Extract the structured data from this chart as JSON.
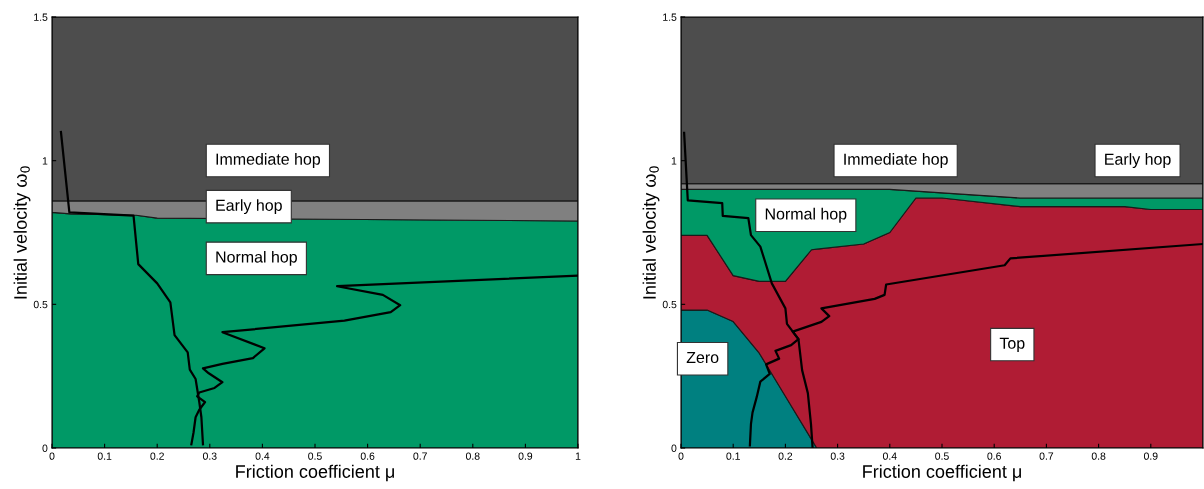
{
  "chart_data": [
    {
      "type": "area",
      "stacked": true,
      "xlabel": "Friction coefficient μ",
      "ylabel": "Initial velocity ω$_{0}$",
      "xlim": [
        0,
        1
      ],
      "ylim": [
        0,
        1.5
      ],
      "xticks": [
        0,
        0.1,
        0.2,
        0.3,
        0.4,
        0.5,
        0.6,
        0.7,
        0.8,
        0.9,
        1
      ],
      "yticks": [
        0,
        0.5,
        1,
        1.5
      ],
      "x": [
        0,
        0.035,
        0.16,
        0.2,
        1
      ],
      "series": [
        {
          "name": "Normal hop",
          "color": "#009966",
          "values": [
            0.82,
            0.815,
            0.81,
            0.8,
            0.79
          ]
        },
        {
          "name": "Early hop",
          "color": "#808080",
          "values": [
            0.04,
            0.045,
            0.05,
            0.06,
            0.07
          ]
        },
        {
          "name": "Immediate hop",
          "color": "#4d4d4d",
          "values": [
            0.64,
            0.64,
            0.64,
            0.64,
            0.64
          ]
        },
        {
          "type": "line",
          "color": "#000000",
          "x": [
            0.017,
            0.033,
            0.155,
            0.164,
            0.2,
            0.225,
            0.233,
            0.258,
            0.262,
            0.273,
            0.28,
            0.284,
            0.287
          ],
          "values": [
            1.1,
            0.82,
            0.809,
            0.64,
            0.573,
            0.507,
            0.393,
            0.333,
            0.273,
            0.24,
            0.16,
            0.107,
            0.013
          ]
        },
        {
          "type": "line",
          "color": "#000000",
          "x": [
            1,
            0.542,
            0.629,
            0.662,
            0.644,
            0.556,
            0.324,
            0.404,
            0.382,
            0.324,
            0.287,
            0.298,
            0.324,
            0.309,
            0.28,
            0.276,
            0.291,
            0.28,
            0.273,
            0.269,
            0.265
          ],
          "values": [
            0.6,
            0.563,
            0.533,
            0.497,
            0.473,
            0.443,
            0.403,
            0.347,
            0.313,
            0.293,
            0.277,
            0.26,
            0.229,
            0.209,
            0.193,
            0.18,
            0.16,
            0.133,
            0.107,
            0.053,
            0.013
          ]
        }
      ]
    },
    {
      "type": "area",
      "stacked": true,
      "xlabel": "Friction coefficient μ",
      "ylabel": "Initial velocity ω$_{0}$",
      "xlim": [
        0,
        1
      ],
      "ylim": [
        0,
        1.5
      ],
      "xticks": [
        0,
        0.1,
        0.2,
        0.3,
        0.4,
        0.5,
        0.6,
        0.7,
        0.8,
        0.9
      ],
      "yticks": [
        0,
        0.5,
        1,
        1.5
      ],
      "x": [
        0,
        0.05,
        0.1,
        0.15,
        0.2,
        0.25,
        0.26,
        0.35,
        0.4,
        0.45,
        0.5,
        0.65,
        0.85,
        0.9,
        1
      ],
      "series": [
        {
          "name": "Zero",
          "color": "#008080",
          "values": [
            0.48,
            0.48,
            0.44,
            0.33,
            0.18,
            0.03,
            0,
            0,
            0,
            0,
            0,
            0,
            0,
            0,
            0
          ]
        },
        {
          "name": "Top",
          "color": "#b01c34",
          "values": [
            0.26,
            0.26,
            0.16,
            0.25,
            0.4,
            0.66,
            0.692,
            0.71,
            0.75,
            0.87,
            0.87,
            0.84,
            0.84,
            0.83,
            0.83
          ]
        },
        {
          "name": "Normal hop",
          "color": "#009966",
          "values": [
            0.16,
            0.16,
            0.3,
            0.32,
            0.32,
            0.21,
            0.208,
            0.19,
            0.15,
            0.024,
            0.018,
            0.03,
            0.03,
            0.04,
            0.04
          ]
        },
        {
          "name": "Early hop",
          "color": "#808080",
          "values": [
            0.02,
            0.02,
            0.02,
            0.02,
            0.02,
            0.02,
            0.02,
            0.02,
            0.02,
            0.026,
            0.032,
            0.05,
            0.05,
            0.05,
            0.05
          ]
        },
        {
          "name": "Immediate hop",
          "color": "#4d4d4d",
          "values": [
            0.58,
            0.58,
            0.58,
            0.58,
            0.58,
            0.58,
            0.58,
            0.58,
            0.58,
            0.58,
            0.58,
            0.58,
            0.58,
            0.58,
            0.58
          ]
        },
        {
          "type": "line",
          "color": "#000000",
          "x": [
            0.006,
            0.013,
            0.079,
            0.08,
            0.129,
            0.134,
            0.152,
            0.174,
            0.2,
            0.203,
            0.225,
            0.232,
            0.243,
            0.249,
            0.252
          ],
          "values": [
            1.097,
            0.862,
            0.852,
            0.808,
            0.8,
            0.741,
            0.701,
            0.573,
            0.486,
            0.432,
            0.379,
            0.271,
            0.191,
            0.083,
            0.003
          ]
        },
        {
          "type": "line",
          "color": "#000000",
          "x": [
            1,
            0.631,
            0.62,
            0.393,
            0.39,
            0.371,
            0.269,
            0.284,
            0.269,
            0.214,
            0.225,
            0.211,
            0.181,
            0.188,
            0.163,
            0.17,
            0.152,
            0.145,
            0.137,
            0.134,
            0.132
          ],
          "values": [
            0.71,
            0.66,
            0.636,
            0.569,
            0.533,
            0.519,
            0.486,
            0.459,
            0.439,
            0.405,
            0.379,
            0.358,
            0.338,
            0.311,
            0.291,
            0.258,
            0.231,
            0.177,
            0.123,
            0.083,
            0.009
          ]
        }
      ]
    }
  ]
}
